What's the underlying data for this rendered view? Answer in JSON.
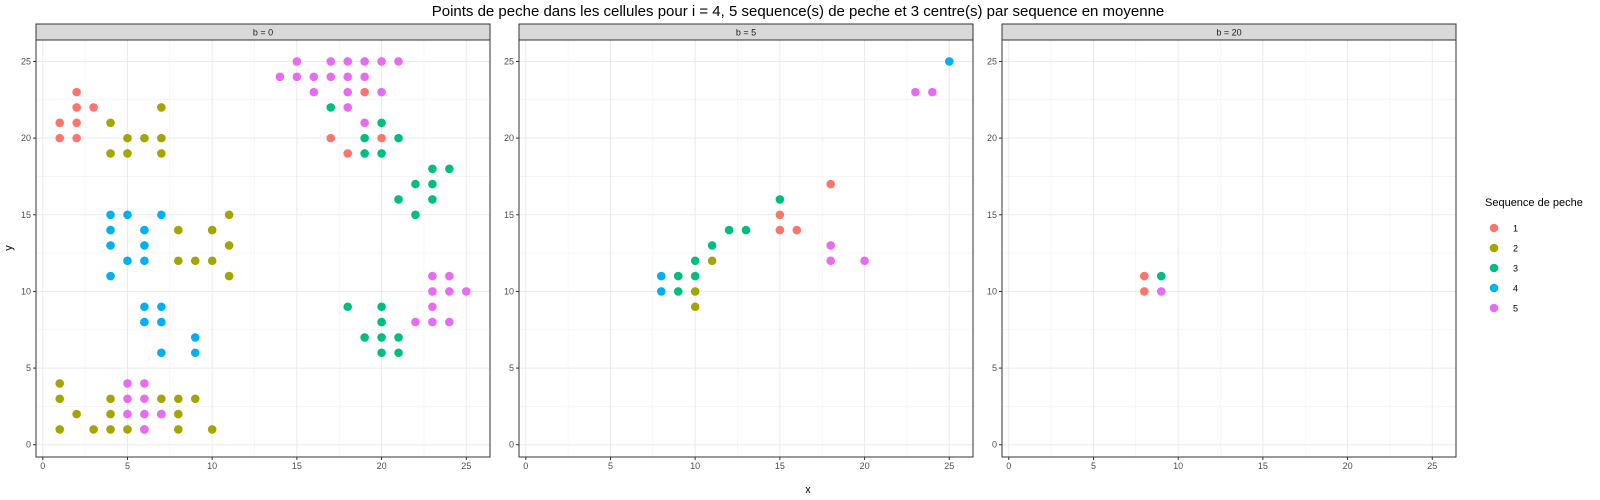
{
  "chart_data": {
    "type": "scatter",
    "title": "Points de peche dans les cellules pour i = 4, 5 sequence(s) de peche et 3 centre(s) par sequence en moyenne",
    "xlabel": "x",
    "ylabel": "y",
    "xlim": [
      0,
      25
    ],
    "ylim": [
      0,
      25
    ],
    "xticks": [
      0,
      5,
      10,
      15,
      20,
      25
    ],
    "yticks": [
      0,
      5,
      10,
      15,
      20,
      25
    ],
    "grid": true,
    "legend": {
      "title": "Sequence de peche",
      "placement": "right",
      "entries": [
        {
          "label": "1",
          "color": "#F8766D"
        },
        {
          "label": "2",
          "color": "#A3A500"
        },
        {
          "label": "3",
          "color": "#00BF7D"
        },
        {
          "label": "4",
          "color": "#00B0F6"
        },
        {
          "label": "5",
          "color": "#E76BF3"
        }
      ]
    },
    "panels": [
      {
        "strip": "b = 0",
        "series": [
          {
            "name": "1",
            "points": [
              [
                1,
                20
              ],
              [
                1,
                21
              ],
              [
                2,
                20
              ],
              [
                2,
                21
              ],
              [
                2,
                22
              ],
              [
                2,
                23
              ],
              [
                3,
                22
              ],
              [
                17,
                20
              ],
              [
                18,
                19
              ],
              [
                19,
                23
              ],
              [
                20,
                20
              ]
            ]
          },
          {
            "name": "2",
            "points": [
              [
                4,
                21
              ],
              [
                4,
                19
              ],
              [
                5,
                20
              ],
              [
                5,
                19
              ],
              [
                6,
                20
              ],
              [
                7,
                22
              ],
              [
                7,
                20
              ],
              [
                7,
                19
              ],
              [
                11,
                15
              ],
              [
                10,
                14
              ],
              [
                8,
                14
              ],
              [
                11,
                13
              ],
              [
                8,
                12
              ],
              [
                9,
                12
              ],
              [
                10,
                12
              ],
              [
                11,
                11
              ],
              [
                1,
                4
              ],
              [
                1,
                3
              ],
              [
                1,
                1
              ],
              [
                2,
                2
              ],
              [
                3,
                1
              ],
              [
                4,
                3
              ],
              [
                4,
                2
              ],
              [
                4,
                1
              ],
              [
                5,
                1
              ],
              [
                6,
                1
              ],
              [
                7,
                3
              ],
              [
                7,
                2
              ],
              [
                8,
                3
              ],
              [
                8,
                2
              ],
              [
                9,
                3
              ],
              [
                8,
                1
              ],
              [
                10,
                1
              ]
            ]
          },
          {
            "name": "3",
            "points": [
              [
                17,
                22
              ],
              [
                19,
                20
              ],
              [
                19,
                19
              ],
              [
                20,
                21
              ],
              [
                20,
                19
              ],
              [
                21,
                20
              ],
              [
                23,
                18
              ],
              [
                24,
                18
              ],
              [
                22,
                17
              ],
              [
                23,
                17
              ],
              [
                21,
                16
              ],
              [
                23,
                16
              ],
              [
                22,
                15
              ],
              [
                18,
                9
              ],
              [
                20,
                9
              ],
              [
                20,
                8
              ],
              [
                19,
                7
              ],
              [
                20,
                7
              ],
              [
                21,
                7
              ],
              [
                20,
                6
              ],
              [
                21,
                6
              ]
            ]
          },
          {
            "name": "4",
            "points": [
              [
                4,
                15
              ],
              [
                5,
                15
              ],
              [
                7,
                15
              ],
              [
                4,
                14
              ],
              [
                6,
                14
              ],
              [
                4,
                13
              ],
              [
                6,
                13
              ],
              [
                5,
                12
              ],
              [
                6,
                12
              ],
              [
                4,
                11
              ],
              [
                6,
                9
              ],
              [
                7,
                9
              ],
              [
                6,
                8
              ],
              [
                7,
                8
              ],
              [
                9,
                7
              ],
              [
                7,
                6
              ],
              [
                9,
                6
              ]
            ]
          },
          {
            "name": "5",
            "points": [
              [
                15,
                25
              ],
              [
                17,
                25
              ],
              [
                18,
                25
              ],
              [
                19,
                25
              ],
              [
                20,
                25
              ],
              [
                21,
                25
              ],
              [
                14,
                24
              ],
              [
                15,
                24
              ],
              [
                16,
                24
              ],
              [
                17,
                24
              ],
              [
                18,
                24
              ],
              [
                19,
                24
              ],
              [
                16,
                23
              ],
              [
                18,
                23
              ],
              [
                20,
                23
              ],
              [
                18,
                22
              ],
              [
                19,
                21
              ],
              [
                23,
                11
              ],
              [
                24,
                11
              ],
              [
                23,
                10
              ],
              [
                24,
                10
              ],
              [
                25,
                10
              ],
              [
                23,
                9
              ],
              [
                22,
                8
              ],
              [
                23,
                8
              ],
              [
                24,
                8
              ],
              [
                5,
                4
              ],
              [
                6,
                4
              ],
              [
                5,
                3
              ],
              [
                6,
                3
              ],
              [
                5,
                2
              ],
              [
                6,
                2
              ],
              [
                7,
                2
              ],
              [
                6,
                1
              ]
            ]
          }
        ]
      },
      {
        "strip": "b = 5",
        "series": [
          {
            "name": "1",
            "points": [
              [
                18,
                17
              ],
              [
                15,
                15
              ],
              [
                15,
                14
              ],
              [
                16,
                14
              ]
            ]
          },
          {
            "name": "2",
            "points": [
              [
                11,
                12
              ],
              [
                10,
                10
              ],
              [
                10,
                9
              ]
            ]
          },
          {
            "name": "3",
            "points": [
              [
                15,
                16
              ],
              [
                11,
                13
              ],
              [
                12,
                14
              ],
              [
                13,
                14
              ],
              [
                10,
                12
              ],
              [
                9,
                11
              ],
              [
                10,
                11
              ],
              [
                9,
                10
              ]
            ]
          },
          {
            "name": "4",
            "points": [
              [
                25,
                25
              ],
              [
                8,
                11
              ],
              [
                8,
                10
              ]
            ]
          },
          {
            "name": "5",
            "points": [
              [
                23,
                23
              ],
              [
                24,
                23
              ],
              [
                18,
                13
              ],
              [
                18,
                12
              ],
              [
                20,
                12
              ]
            ]
          }
        ]
      },
      {
        "strip": "b = 20",
        "series": [
          {
            "name": "1",
            "points": [
              [
                8,
                11
              ],
              [
                8,
                10
              ]
            ]
          },
          {
            "name": "2",
            "points": []
          },
          {
            "name": "3",
            "points": [
              [
                9,
                11
              ]
            ]
          },
          {
            "name": "4",
            "points": []
          },
          {
            "name": "5",
            "points": [
              [
                9,
                10
              ]
            ]
          }
        ]
      }
    ]
  }
}
